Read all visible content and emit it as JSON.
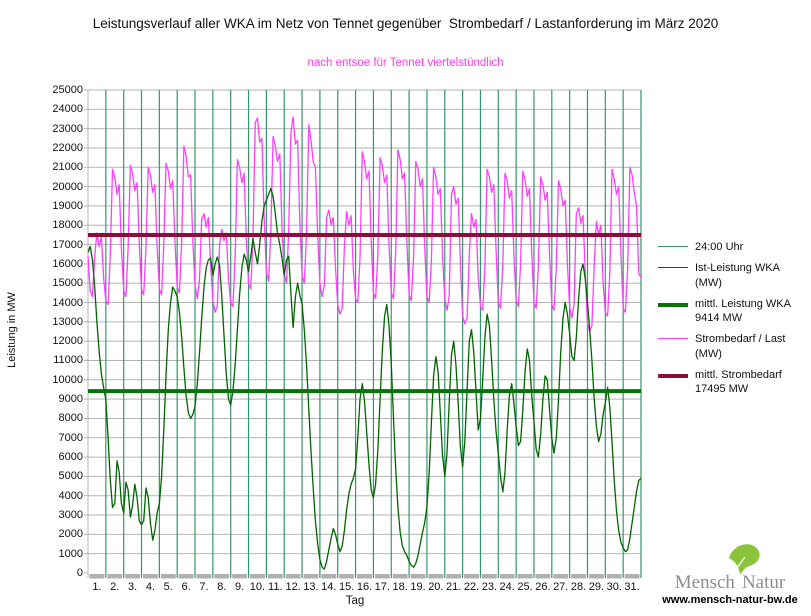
{
  "title": "Leistungsverlauf aller WKA im Netz von Tennet gegenüber  Strombedarf / Lastanforderung im März 2020",
  "subtitle": "nach entsoe für Tennet viertelstündlich",
  "axes": {
    "x_label": "Tag",
    "y_label": "Leistung in MW"
  },
  "legend": {
    "items": [
      {
        "label": "24:00 Uhr",
        "color": "#35966a",
        "weight": 1
      },
      {
        "label": "Ist-Leistung WKA (MW)",
        "color": "#006400",
        "weight": 1
      },
      {
        "label": "mittl. Leistung WKA 9414 MW",
        "color": "#067306",
        "weight": 4
      },
      {
        "label": "Strombedarf / Last (MW)",
        "color": "#fb41fb",
        "weight": 1
      },
      {
        "label": "mittl. Strombedarf 17495 MW",
        "color": "#8b0e38",
        "weight": 4
      }
    ]
  },
  "footer": {
    "brand_left": "Mensch",
    "brand_right": "Natur",
    "url": "www.mensch-natur-bw.de",
    "leaf_color": "#8bc43c"
  },
  "chart_data": {
    "type": "line",
    "title": "Leistungsverlauf aller WKA im Netz von Tennet gegenüber Strombedarf / Lastanforderung im März 2020",
    "subtitle": "nach entsoe für Tennet viertelstündlich",
    "xlabel": "Tag",
    "ylabel": "Leistung in MW",
    "ylim": [
      0,
      25000
    ],
    "ytick_step": 1000,
    "grid": true,
    "grid_color": "#b4b4b4",
    "legend_position": "right",
    "x_note": "March 2020, 8 samples per day (every 3 h), values in MW",
    "day_labels": [
      "1.",
      "2.",
      "3.",
      "4.",
      "5.",
      "6.",
      "7.",
      "8.",
      "9.",
      "10.",
      "11.",
      "12.",
      "13.",
      "14.",
      "15.",
      "16.",
      "17.",
      "18.",
      "19.",
      "20.",
      "21.",
      "22.",
      "23.",
      "24.",
      "25.",
      "26.",
      "27.",
      "28.",
      "29.",
      "30.",
      "31."
    ],
    "day_separator": {
      "label": "24:00 Uhr",
      "color": "#35966a"
    },
    "axis_bar_color": "#b0b0b0",
    "series": [
      {
        "name": "Strombedarf / Last (MW)",
        "color": "#fb41fb",
        "width": 1.3,
        "values": [
          16400,
          14600,
          14300,
          16400,
          17600,
          16900,
          17400,
          15300,
          14100,
          13900,
          16500,
          20900,
          20500,
          19600,
          20100,
          16800,
          14600,
          14300,
          16800,
          21100,
          20700,
          19800,
          20200,
          17000,
          14700,
          14400,
          16900,
          21000,
          20600,
          19700,
          20100,
          16900,
          14700,
          14400,
          17000,
          21200,
          20800,
          19900,
          20300,
          17100,
          14800,
          14500,
          17200,
          22100,
          21600,
          20500,
          20600,
          17200,
          14900,
          14200,
          15200,
          18300,
          18600,
          17900,
          18400,
          16000,
          14100,
          13500,
          13800,
          17000,
          17800,
          17200,
          17600,
          15200,
          14000,
          13800,
          16400,
          21400,
          21000,
          20200,
          20700,
          17400,
          15000,
          14700,
          17400,
          23300,
          23550,
          22300,
          22500,
          18300,
          15600,
          15100,
          17600,
          22600,
          22100,
          21300,
          21700,
          17900,
          15500,
          15000,
          17700,
          22800,
          23600,
          22200,
          22400,
          18200,
          15400,
          15000,
          17500,
          23200,
          22400,
          21300,
          21000,
          17500,
          15000,
          14300,
          14900,
          18400,
          18800,
          18000,
          18400,
          15800,
          13900,
          13400,
          13700,
          16900,
          18700,
          18000,
          18500,
          15600,
          14200,
          14000,
          16300,
          21800,
          21300,
          20400,
          20800,
          17200,
          14500,
          14200,
          16500,
          21500,
          21100,
          20200,
          20600,
          17000,
          14500,
          14200,
          16600,
          21900,
          21400,
          20400,
          20700,
          17100,
          14400,
          14100,
          16400,
          21300,
          20900,
          20000,
          20400,
          16900,
          14300,
          14000,
          16200,
          21000,
          20500,
          19600,
          19900,
          16500,
          14200,
          13600,
          14300,
          19600,
          20000,
          19100,
          19400,
          16100,
          13300,
          12900,
          13200,
          16400,
          18600,
          17900,
          18300,
          15300,
          13800,
          13600,
          15800,
          20900,
          20500,
          19700,
          20100,
          16700,
          14000,
          13700,
          15900,
          20700,
          20300,
          19400,
          19800,
          16500,
          14100,
          13800,
          16000,
          20800,
          20400,
          19500,
          19900,
          16600,
          14000,
          13700,
          15900,
          20500,
          20100,
          19300,
          19700,
          16400,
          13900,
          13600,
          15800,
          20300,
          19900,
          19000,
          19300,
          16000,
          13800,
          13200,
          13900,
          18600,
          18900,
          18100,
          18500,
          15500,
          12900,
          12500,
          12800,
          15900,
          18200,
          17500,
          18000,
          15000,
          13500,
          13300,
          15500,
          20900,
          20400,
          19600,
          20000,
          16600,
          13700,
          13500,
          15700,
          21000,
          20600,
          19700,
          19000,
          15500,
          15300
        ]
      },
      {
        "name": "Ist-Leistung WKA (MW)",
        "color": "#006400",
        "width": 1.3,
        "values": [
          16600,
          16900,
          16200,
          14800,
          13000,
          11500,
          10300,
          9600,
          9000,
          7000,
          4800,
          3400,
          3600,
          5800,
          5200,
          3600,
          3100,
          4700,
          4300,
          2900,
          3500,
          4600,
          3900,
          2700,
          2500,
          2700,
          4400,
          3900,
          2600,
          1700,
          2200,
          3100,
          3600,
          5000,
          7400,
          10200,
          12600,
          14000,
          14800,
          14600,
          14300,
          13500,
          12200,
          10600,
          9200,
          8300,
          8000,
          8200,
          8600,
          9800,
          11400,
          13200,
          14800,
          15800,
          16200,
          16300,
          15400,
          16000,
          16350,
          15900,
          14300,
          12300,
          10300,
          9000,
          8700,
          9400,
          10800,
          12600,
          14400,
          15800,
          16500,
          16200,
          15600,
          16400,
          17300,
          16600,
          16000,
          17000,
          18200,
          19000,
          19300,
          19600,
          19900,
          19500,
          18600,
          17600,
          17000,
          16300,
          15400,
          16200,
          16400,
          14500,
          12700,
          14300,
          15000,
          14400,
          13900,
          12600,
          10800,
          8500,
          6300,
          4400,
          2700,
          1500,
          700,
          300,
          200,
          600,
          1200,
          1800,
          2300,
          2000,
          1500,
          1100,
          1400,
          2200,
          3300,
          4100,
          4600,
          4900,
          5400,
          7000,
          9000,
          9800,
          8900,
          7300,
          5600,
          4300,
          3900,
          4600,
          6400,
          9000,
          11500,
          13300,
          13900,
          12800,
          10800,
          8000,
          5400,
          3400,
          2100,
          1400,
          1100,
          900,
          600,
          400,
          300,
          500,
          900,
          1500,
          2100,
          2600,
          3400,
          5200,
          7800,
          10200,
          11200,
          10400,
          8300,
          6100,
          5000,
          6200,
          8800,
          11300,
          12000,
          10800,
          8800,
          6500,
          5500,
          6800,
          9500,
          12000,
          12600,
          11400,
          9400,
          7400,
          8000,
          10000,
          12200,
          13400,
          12800,
          11000,
          9000,
          7300,
          6200,
          5000,
          4200,
          5200,
          7400,
          9200,
          9800,
          8800,
          7600,
          6600,
          6800,
          8400,
          10400,
          11600,
          11000,
          9200,
          7800,
          6400,
          6000,
          7200,
          9000,
          10200,
          10000,
          8400,
          7000,
          6200,
          7000,
          9000,
          11400,
          13200,
          14000,
          13400,
          12400,
          11200,
          11000,
          12200,
          14200,
          15600,
          16000,
          15200,
          14000,
          12600,
          11000,
          9000,
          7600,
          6800,
          7200,
          8200,
          8800,
          9600,
          8600,
          6800,
          4800,
          3200,
          2200,
          1600,
          1300,
          1100,
          1200,
          1800,
          2600,
          3400,
          4200,
          4800,
          4900
        ]
      }
    ],
    "mean_lines": [
      {
        "name": "mittl. Leistung WKA",
        "value": 9414,
        "color": "#067306",
        "width": 4
      },
      {
        "name": "mittl. Strombedarf",
        "value": 17495,
        "color": "#8b0e38",
        "width": 4
      }
    ]
  }
}
